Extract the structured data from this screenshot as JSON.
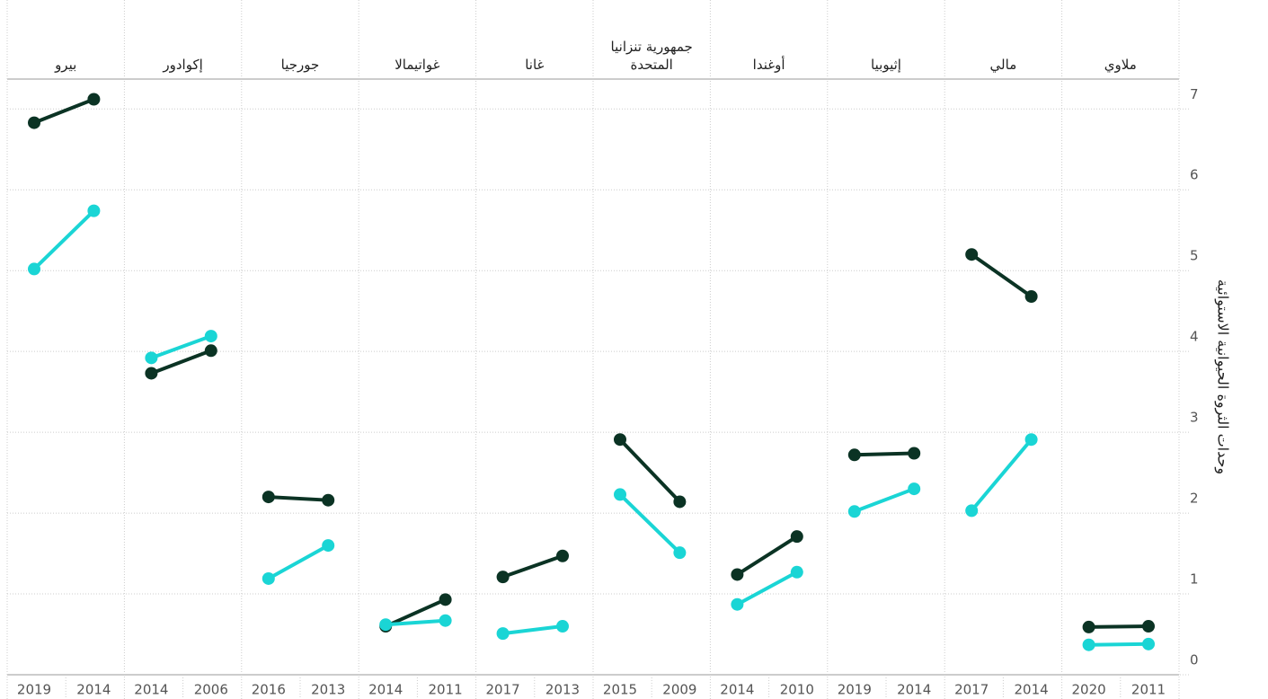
{
  "chart_data": {
    "type": "slope",
    "y_label": "وحدات الثروة الحيوانية الاستوائية",
    "panels": [
      {
        "title": "بيرو",
        "x": [
          "2019",
          "2014"
        ]
      },
      {
        "title": "إكوادور",
        "x": [
          "2014",
          "2006"
        ]
      },
      {
        "title": "جورجيا",
        "x": [
          "2016",
          "2013"
        ]
      },
      {
        "title": "غواتيمالا",
        "x": [
          "2014",
          "2011"
        ]
      },
      {
        "title": "غانا",
        "x": [
          "2017",
          "2013"
        ]
      },
      {
        "title": "جمهورية تنزانيا المتحدة",
        "x": [
          "2015",
          "2009"
        ]
      },
      {
        "title": "أوغندا",
        "x": [
          "2014",
          "2010"
        ]
      },
      {
        "title": "إثيوبيا",
        "x": [
          "2019",
          "2014"
        ]
      },
      {
        "title": "مالي",
        "x": [
          "2017",
          "2014"
        ]
      },
      {
        "title": "ملاوي",
        "x": [
          "2020",
          "2011"
        ]
      }
    ],
    "series": [
      {
        "color": "#0b3324",
        "values": [
          [
            6.83,
            7.12
          ],
          [
            3.73,
            4.01
          ],
          [
            2.2,
            2.16
          ],
          [
            0.6,
            0.93
          ],
          [
            1.21,
            1.47
          ],
          [
            2.91,
            2.14
          ],
          [
            1.24,
            1.71
          ],
          [
            2.72,
            2.74
          ],
          [
            5.2,
            4.68
          ],
          [
            0.59,
            0.6
          ]
        ]
      },
      {
        "color": "#1ad5d5",
        "values": [
          [
            5.02,
            5.74
          ],
          [
            3.92,
            4.19
          ],
          [
            1.19,
            1.6
          ],
          [
            0.62,
            0.67
          ],
          [
            0.51,
            0.6
          ],
          [
            2.23,
            1.51
          ],
          [
            0.87,
            1.27
          ],
          [
            2.02,
            2.3
          ],
          [
            2.03,
            2.91
          ],
          [
            0.37,
            0.38
          ]
        ]
      }
    ],
    "ylim": [
      0,
      7.37
    ],
    "yticks": [
      0,
      1,
      2,
      3,
      4,
      5,
      6,
      7
    ],
    "grid": true
  }
}
